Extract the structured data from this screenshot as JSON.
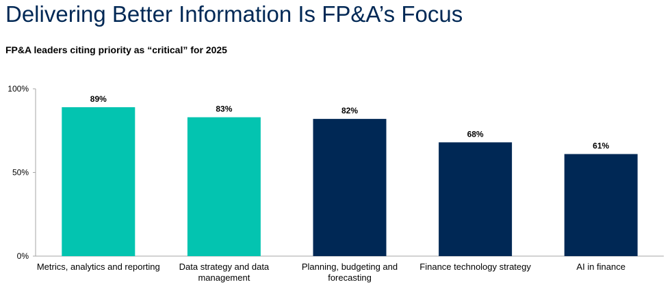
{
  "title": "Delivering Better Information Is FP&A’s Focus",
  "subtitle": "FP&A leaders citing priority as “critical” for 2025",
  "colors": {
    "highlight": "#03C4B0",
    "primary": "#002855",
    "axis": "#a6a6a6"
  },
  "chart_data": {
    "type": "bar",
    "categories": [
      [
        "Metrics, analytics and reporting"
      ],
      [
        "Data strategy and data",
        "management"
      ],
      [
        "Planning, budgeting and",
        "forecasting"
      ],
      [
        "Finance technology strategy"
      ],
      [
        "AI in finance"
      ]
    ],
    "values": [
      89,
      83,
      82,
      68,
      61
    ],
    "data_labels": [
      "89%",
      "83%",
      "82%",
      "68%",
      "61%"
    ],
    "bar_colors": [
      "#03C4B0",
      "#03C4B0",
      "#002855",
      "#002855",
      "#002855"
    ],
    "yticks": [
      0,
      50,
      100
    ],
    "ytick_labels": [
      "0%",
      "50%",
      "100%"
    ],
    "ylim": [
      0,
      100
    ],
    "grid": false,
    "legend": "none"
  }
}
